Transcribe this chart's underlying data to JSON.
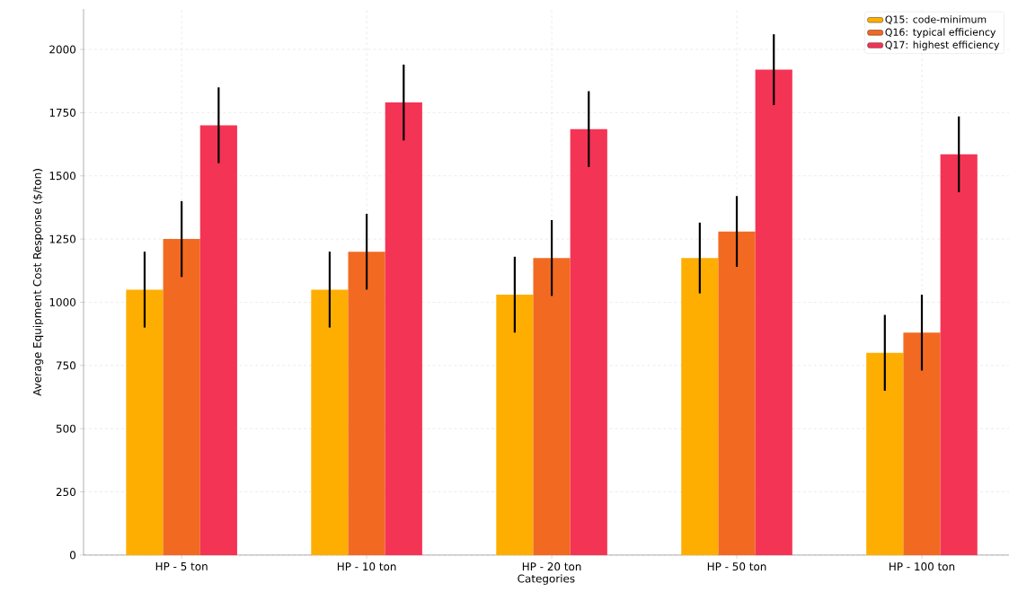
{
  "chart_data": {
    "type": "bar",
    "xlabel": "Categories",
    "ylabel": "Average Equipment Cost Response ($/ton)",
    "categories": [
      "HP - 5 ton",
      "HP - 10 ton",
      "HP - 20 ton",
      "HP - 50 ton",
      "HP - 100 ton"
    ],
    "series": [
      {
        "name": "Q15: code-minimum",
        "color": "#fdae00",
        "values": [
          1050,
          1050,
          1030,
          1175,
          800
        ],
        "errors": [
          150,
          150,
          150,
          140,
          150
        ]
      },
      {
        "name": "Q16: typical efficiency",
        "color": "#f26a21",
        "values": [
          1250,
          1200,
          1175,
          1280,
          880
        ],
        "errors": [
          150,
          150,
          150,
          140,
          150
        ]
      },
      {
        "name": "Q17: highest efficiency",
        "color": "#f43455",
        "values": [
          1700,
          1790,
          1685,
          1920,
          1585
        ],
        "errors": [
          150,
          150,
          150,
          140,
          150
        ]
      }
    ],
    "ylim": [
      0,
      2160
    ],
    "yticks": [
      0,
      250,
      500,
      750,
      1000,
      1250,
      1500,
      1750,
      2000
    ],
    "grid": true,
    "legend": "top right"
  }
}
